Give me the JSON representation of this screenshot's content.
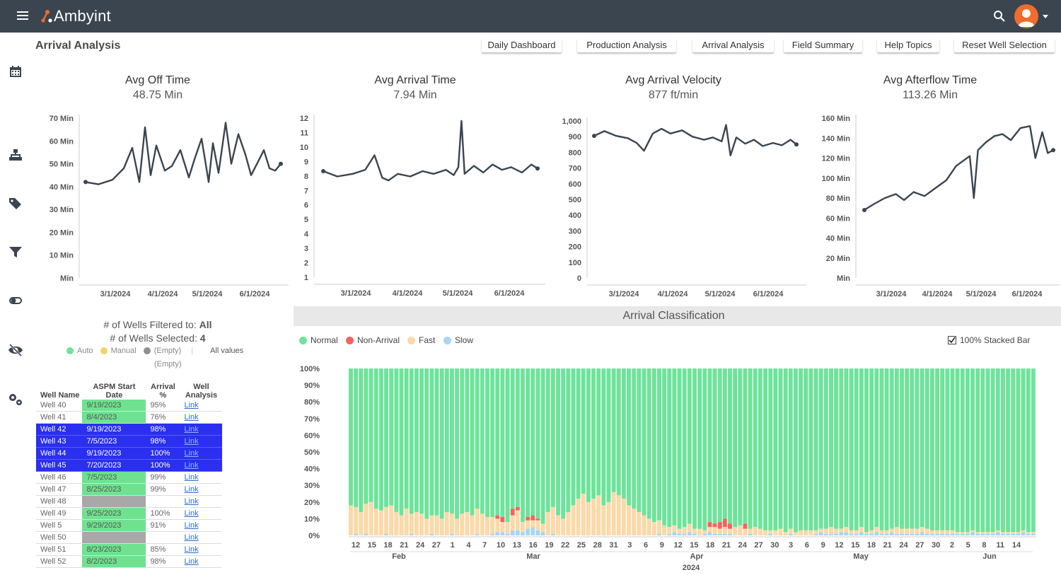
{
  "app": {
    "name": "Ambyint",
    "page_title": "Arrival Analysis"
  },
  "nav": [
    {
      "label": "Daily Dashboard",
      "name": "nav-daily-dashboard"
    },
    {
      "label": "Production Analysis",
      "name": "nav-production-analysis"
    },
    {
      "label": "Arrival Analysis",
      "name": "nav-arrival-analysis"
    },
    {
      "label": "Field Summary",
      "name": "nav-field-summary"
    },
    {
      "label": "Help Topics",
      "name": "nav-help-topics"
    },
    {
      "label": "Reset Well Selection",
      "name": "nav-reset-well-selection"
    }
  ],
  "sidebar_icons": [
    "calendar-icon",
    "hierarchy-icon",
    "tags-icon",
    "filter-icon",
    "toggle-icon",
    "eye-slash-icon",
    "gears-icon"
  ],
  "kpis": [
    {
      "title": "Avg Off Time",
      "value": "48.75 Min"
    },
    {
      "title": "Avg Arrival Time",
      "value": "7.94 Min"
    },
    {
      "title": "Avg Arrival Velocity",
      "value": "877 ft/min"
    },
    {
      "title": "Avg Afterflow Time",
      "value": "113.26 Min"
    }
  ],
  "chart_data": [
    {
      "type": "line",
      "title": "",
      "y_ticks": [
        "70 Min",
        "60 Min",
        "50 Min",
        "40 Min",
        "30 Min",
        "20 Min",
        "10 Min",
        "Min"
      ],
      "x_ticks": [
        "3/1/2024",
        "4/1/2024",
        "5/1/2024",
        "6/1/2024"
      ],
      "ylim": [
        0,
        70
      ],
      "xlim": [
        "2024-02-01",
        "2024-06-20"
      ],
      "series": [
        {
          "x": [
            "2024-02-01",
            "2024-02-10",
            "2024-02-20",
            "2024-02-28",
            "2024-03-05",
            "2024-03-10",
            "2024-03-14",
            "2024-03-18",
            "2024-03-22",
            "2024-03-28",
            "2024-04-02",
            "2024-04-08",
            "2024-04-14",
            "2024-04-18",
            "2024-04-23",
            "2024-04-28",
            "2024-05-01",
            "2024-05-05",
            "2024-05-10",
            "2024-05-14",
            "2024-05-19",
            "2024-05-24",
            "2024-05-28",
            "2024-06-02",
            "2024-06-06",
            "2024-06-10",
            "2024-06-14",
            "2024-06-18"
          ],
          "values": [
            42,
            41,
            43,
            48,
            57,
            42,
            66,
            45,
            58,
            47,
            49,
            56,
            44,
            52,
            61,
            42,
            59,
            46,
            68,
            50,
            63,
            54,
            45,
            51,
            56,
            48,
            47,
            50
          ]
        }
      ]
    },
    {
      "type": "line",
      "title": "",
      "y_ticks": [
        "12",
        "11",
        "10",
        "9",
        "8",
        "7",
        "6",
        "5",
        "4",
        "3",
        "2",
        "1"
      ],
      "x_ticks": [
        "3/1/2024",
        "4/1/2024",
        "5/1/2024",
        "6/1/2024"
      ],
      "ylim": [
        0,
        12
      ],
      "xlim": [
        "2024-02-01",
        "2024-06-20"
      ],
      "series": [
        {
          "x": [
            "2024-02-01",
            "2024-02-10",
            "2024-02-20",
            "2024-02-28",
            "2024-03-05",
            "2024-03-10",
            "2024-03-14",
            "2024-03-20",
            "2024-03-28",
            "2024-04-05",
            "2024-04-12",
            "2024-04-20",
            "2024-04-25",
            "2024-04-28",
            "2024-04-30",
            "2024-05-02",
            "2024-05-08",
            "2024-05-14",
            "2024-05-20",
            "2024-05-26",
            "2024-06-01",
            "2024-06-08",
            "2024-06-14",
            "2024-06-18"
          ],
          "values": [
            8.0,
            7.6,
            7.8,
            8.1,
            9.2,
            7.5,
            7.3,
            7.8,
            7.6,
            8.0,
            7.8,
            8.1,
            7.7,
            8.3,
            11.8,
            7.8,
            8.4,
            7.9,
            8.5,
            8.1,
            8.3,
            7.9,
            8.5,
            8.2
          ]
        }
      ]
    },
    {
      "type": "line",
      "title": "",
      "y_ticks": [
        "1,000",
        "900",
        "800",
        "700",
        "600",
        "500",
        "400",
        "300",
        "200",
        "100",
        "0"
      ],
      "x_ticks": [
        "3/1/2024",
        "4/1/2024",
        "5/1/2024",
        "6/1/2024"
      ],
      "ylim": [
        0,
        1000
      ],
      "xlim": [
        "2024-02-01",
        "2024-06-20"
      ],
      "series": [
        {
          "x": [
            "2024-02-01",
            "2024-02-08",
            "2024-02-16",
            "2024-02-24",
            "2024-03-01",
            "2024-03-06",
            "2024-03-12",
            "2024-03-18",
            "2024-03-24",
            "2024-04-01",
            "2024-04-08",
            "2024-04-16",
            "2024-04-22",
            "2024-04-28",
            "2024-05-01",
            "2024-05-04",
            "2024-05-08",
            "2024-05-14",
            "2024-05-20",
            "2024-05-26",
            "2024-06-02",
            "2024-06-08",
            "2024-06-14",
            "2024-06-18"
          ],
          "values": [
            905,
            935,
            905,
            890,
            860,
            810,
            920,
            950,
            920,
            940,
            900,
            880,
            895,
            870,
            975,
            780,
            895,
            855,
            880,
            840,
            860,
            845,
            880,
            850
          ]
        }
      ]
    },
    {
      "type": "line",
      "title": "",
      "y_ticks": [
        "160 Min",
        "140 Min",
        "120 Min",
        "100 Min",
        "80 Min",
        "60 Min",
        "40 Min",
        "20 Min",
        "Min"
      ],
      "x_ticks": [
        "3/1/2024",
        "4/1/2024",
        "5/1/2024",
        "6/1/2024"
      ],
      "ylim": [
        0,
        160
      ],
      "xlim": [
        "2024-02-01",
        "2024-06-20"
      ],
      "series": [
        {
          "x": [
            "2024-02-01",
            "2024-02-08",
            "2024-02-16",
            "2024-02-24",
            "2024-03-01",
            "2024-03-08",
            "2024-03-16",
            "2024-03-24",
            "2024-04-01",
            "2024-04-08",
            "2024-04-14",
            "2024-04-18",
            "2024-04-21",
            "2024-04-24",
            "2024-04-30",
            "2024-05-06",
            "2024-05-12",
            "2024-05-18",
            "2024-05-25",
            "2024-06-01",
            "2024-06-05",
            "2024-06-10",
            "2024-06-14",
            "2024-06-18"
          ],
          "values": [
            68,
            74,
            80,
            84,
            78,
            86,
            82,
            90,
            98,
            112,
            118,
            122,
            80,
            128,
            136,
            142,
            144,
            138,
            150,
            152,
            120,
            146,
            125,
            128
          ]
        }
      ]
    },
    {
      "type": "bar",
      "title": "Arrival Classification",
      "stacked": true,
      "percent": true,
      "y_ticks": [
        "100%",
        "90%",
        "80%",
        "70%",
        "60%",
        "50%",
        "40%",
        "30%",
        "20%",
        "10%",
        "0%"
      ],
      "x_ticks": [
        "12",
        "15",
        "18",
        "21",
        "24",
        "27",
        "1",
        "4",
        "7",
        "10",
        "13",
        "16",
        "19",
        "22",
        "25",
        "28",
        "31",
        "3",
        "6",
        "9",
        "12",
        "15",
        "18",
        "21",
        "24",
        "27",
        "30",
        "3",
        "6",
        "9",
        "12",
        "15",
        "18",
        "21",
        "24",
        "27",
        "30",
        "2",
        "5",
        "8",
        "11",
        "14"
      ],
      "month_labels": [
        "Feb",
        "Mar",
        "Apr",
        "May",
        "Jun"
      ],
      "year_label": "2024",
      "legend": [
        {
          "name": "Normal",
          "color": "#6ee39b"
        },
        {
          "name": "Non-Arrival",
          "color": "#f4645a"
        },
        {
          "name": "Fast",
          "color": "#fbd9a8"
        },
        {
          "name": "Slow",
          "color": "#a8d4f7"
        }
      ],
      "categories_range": [
        "2024-02-11",
        "2024-06-15"
      ],
      "series": [
        {
          "name": "Fast",
          "values": [
            18,
            16,
            14,
            18,
            20,
            16,
            15,
            16,
            18,
            14,
            12,
            16,
            12,
            14,
            13,
            10,
            11,
            12,
            10,
            14,
            12,
            10,
            13,
            14,
            12,
            15,
            13,
            11,
            10,
            8,
            6,
            7,
            9,
            12,
            6,
            5,
            4,
            6,
            5,
            14,
            16,
            12,
            10,
            14,
            18,
            22,
            25,
            20,
            22,
            24,
            18,
            20,
            26,
            24,
            22,
            18,
            16,
            14,
            12,
            10,
            8,
            8,
            6,
            4,
            4,
            3,
            4,
            5,
            3,
            4,
            2,
            3,
            4,
            3,
            4,
            3,
            5,
            6,
            4,
            3,
            5,
            4,
            3,
            2,
            3,
            4,
            2,
            3,
            2,
            3,
            3,
            3,
            2,
            2,
            3,
            4,
            3,
            2,
            3,
            2,
            2,
            3,
            1,
            2,
            3,
            2,
            2,
            2,
            4,
            3,
            3,
            3,
            3,
            3,
            3,
            2,
            2,
            2,
            2,
            2,
            1,
            1,
            1,
            1,
            1,
            1,
            1,
            1,
            1,
            1,
            1,
            1,
            1,
            1,
            1,
            1
          ]
        },
        {
          "name": "Slow",
          "values": [
            0,
            1,
            0,
            1,
            0,
            0,
            0,
            1,
            0,
            0,
            0,
            0,
            1,
            0,
            0,
            0,
            1,
            0,
            0,
            0,
            1,
            0,
            0,
            0,
            0,
            1,
            0,
            0,
            1,
            2,
            2,
            1,
            3,
            3,
            2,
            4,
            5,
            3,
            2,
            0,
            1,
            0,
            0,
            0,
            0,
            0,
            0,
            0,
            0,
            0,
            0,
            0,
            0,
            0,
            0,
            0,
            0,
            0,
            0,
            0,
            0,
            1,
            0,
            1,
            2,
            1,
            1,
            2,
            1,
            0,
            1,
            2,
            1,
            1,
            1,
            1,
            0,
            0,
            0,
            1,
            0,
            0,
            0,
            1,
            0,
            0,
            0,
            1,
            0,
            0,
            0,
            0,
            1,
            2,
            1,
            1,
            1,
            2,
            2,
            1,
            1,
            2,
            1,
            1,
            2,
            1,
            1,
            2,
            1,
            1,
            1,
            1,
            1,
            2,
            1,
            1,
            1,
            1,
            1,
            1,
            1,
            1,
            1,
            2,
            1,
            1,
            1,
            1,
            2,
            1,
            1,
            1,
            1,
            2,
            1,
            1
          ]
        },
        {
          "name": "Non-Arrival",
          "values": [
            0,
            0,
            0,
            0,
            0,
            0,
            0,
            0,
            0,
            0,
            0,
            0,
            0,
            0,
            0,
            0,
            0,
            0,
            0,
            0,
            0,
            0,
            0,
            0,
            0,
            0,
            0,
            0,
            0,
            2,
            3,
            0,
            4,
            2,
            0,
            2,
            3,
            1,
            0,
            0,
            0,
            0,
            0,
            0,
            0,
            0,
            0,
            0,
            0,
            0,
            0,
            0,
            0,
            0,
            0,
            0,
            0,
            0,
            0,
            0,
            0,
            0,
            0,
            0,
            0,
            0,
            0,
            0,
            0,
            0,
            0,
            3,
            2,
            4,
            5,
            3,
            0,
            0,
            3,
            0,
            0,
            0,
            0,
            0,
            0,
            0,
            0,
            0,
            0,
            0,
            0,
            0,
            0,
            0,
            0,
            0,
            0,
            0,
            0,
            0,
            0,
            0,
            0,
            0,
            0,
            0,
            0,
            0,
            0,
            0,
            0,
            0,
            0,
            0,
            0,
            0,
            0,
            0,
            0,
            0,
            0,
            0,
            0,
            0,
            0,
            0,
            0,
            0,
            0,
            0,
            0,
            0,
            0,
            0,
            0,
            0
          ]
        }
      ]
    }
  ],
  "filters": {
    "line1_prefix": "# of Wells Filtered to: ",
    "line1_value": "All",
    "line2_prefix": "# of Wells Selected: ",
    "line2_value": "4",
    "legend": [
      {
        "label": "Auto",
        "color": "#6ee39b"
      },
      {
        "label": "Manual",
        "color": "#f5d36a"
      },
      {
        "label": "(Empty)",
        "color": "#909090"
      }
    ],
    "all_values": "All values",
    "empty_label": "(Empty)"
  },
  "checkbox_label": "100% Stacked Bar",
  "wells_table": {
    "headers": [
      "Well Name",
      "ASPM Start Date",
      "Arrival %",
      "Well Analysis"
    ],
    "rows": [
      {
        "name": "Well 40",
        "date": "9/19/2023",
        "pct": "95%",
        "link": "Link",
        "sel": false
      },
      {
        "name": "Well 41",
        "date": "8/4/2023",
        "pct": "76%",
        "link": "Link",
        "sel": false
      },
      {
        "name": "Well 42",
        "date": "9/19/2023",
        "pct": "98%",
        "link": "Link",
        "sel": true
      },
      {
        "name": "Well 43",
        "date": "7/5/2023",
        "pct": "98%",
        "link": "Link",
        "sel": true
      },
      {
        "name": "Well 44",
        "date": "9/19/2023",
        "pct": "100%",
        "link": "Link",
        "sel": true
      },
      {
        "name": "Well 45",
        "date": "7/20/2023",
        "pct": "100%",
        "link": "Link",
        "sel": true
      },
      {
        "name": "Well 46",
        "date": "7/5/2023",
        "pct": "99%",
        "link": "Link",
        "sel": false
      },
      {
        "name": "Well 47",
        "date": "8/25/2023",
        "pct": "99%",
        "link": "Link",
        "sel": false
      },
      {
        "name": "Well 48",
        "date": "",
        "pct": "",
        "link": "Link",
        "sel": false
      },
      {
        "name": "Well 49",
        "date": "9/25/2023",
        "pct": "100%",
        "link": "Link",
        "sel": false
      },
      {
        "name": "Well 5",
        "date": "9/29/2023",
        "pct": "91%",
        "link": "Link",
        "sel": false
      },
      {
        "name": "Well 50",
        "date": "",
        "pct": "",
        "link": "Link",
        "sel": false
      },
      {
        "name": "Well 51",
        "date": "8/23/2023",
        "pct": "85%",
        "link": "Link",
        "sel": false
      },
      {
        "name": "Well 52",
        "date": "8/2/2023",
        "pct": "98%",
        "link": "Link",
        "sel": false
      }
    ]
  }
}
